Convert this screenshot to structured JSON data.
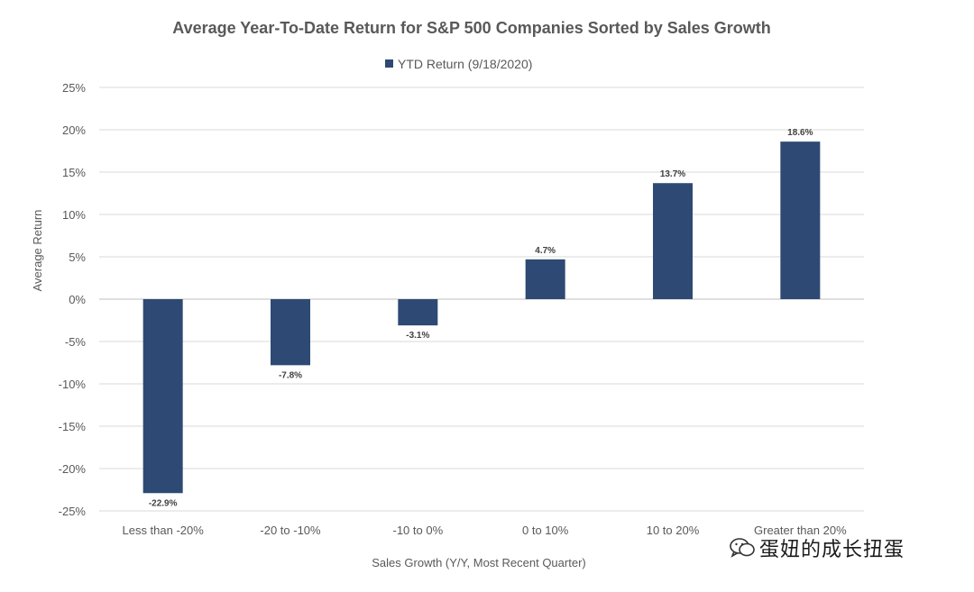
{
  "chart_data": {
    "type": "bar",
    "title": "Average Year-To-Date Return for S&P 500 Companies Sorted by Sales Growth",
    "legend": "YTD Return (9/18/2020)",
    "categories": [
      "Less than -20%",
      "-20 to -10%",
      "-10 to 0%",
      "0 to 10%",
      "10 to 20%",
      "Greater than 20%"
    ],
    "values": [
      -22.9,
      -7.8,
      -3.1,
      4.7,
      13.7,
      18.6
    ],
    "data_labels": [
      "-22.9%",
      "-7.8%",
      "-3.1%",
      "4.7%",
      "13.7%",
      "18.6%"
    ],
    "yticks": [
      25,
      20,
      15,
      10,
      5,
      0,
      -5,
      -10,
      -15,
      -20,
      -25
    ],
    "ytick_labels": [
      "25%",
      "20%",
      "15%",
      "10%",
      "5%",
      "0%",
      "-5%",
      "-10%",
      "-15%",
      "-20%",
      "-25%"
    ],
    "ylim": [
      -25,
      25
    ],
    "xlabel": "Sales Growth (Y/Y, Most Recent Quarter)",
    "ylabel": "Average Return",
    "grid": true,
    "bar_color": "#2e4a74"
  },
  "watermark": {
    "text": "蛋妞的成长扭蛋",
    "icon": "wechat-icon"
  }
}
